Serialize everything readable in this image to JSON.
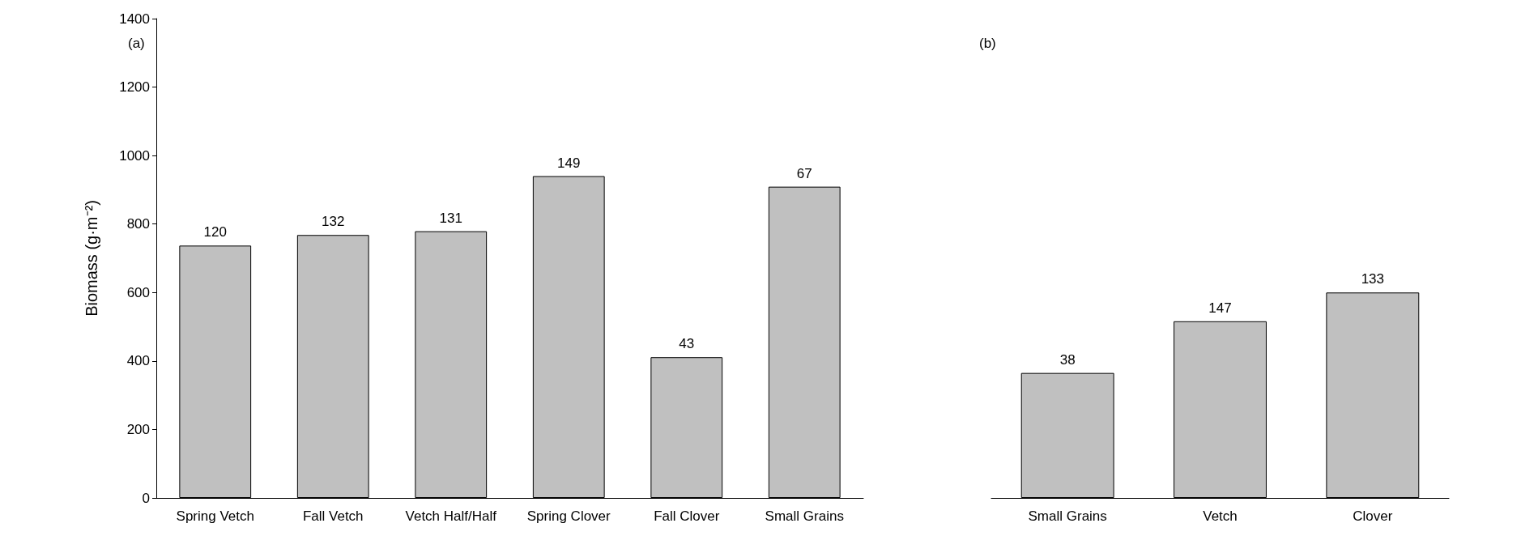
{
  "chart_data": [
    {
      "type": "bar",
      "title": "(a)",
      "ylabel": "Biomass (g·m⁻²)",
      "categories": [
        "Spring Vetch",
        "Fall Vetch",
        "Vetch Half/Half",
        "Spring Clover",
        "Fall Clover",
        "Small Grains"
      ],
      "values": [
        737,
        768,
        779,
        940,
        411,
        909
      ],
      "color": "#c0c0c0",
      "ylim": [
        0,
        1400
      ],
      "yticks": [
        0,
        200,
        400,
        600,
        800,
        1000,
        1200,
        1400
      ],
      "annotations": [
        {
          "text": "120",
          "x": "Spring Vetch",
          "y": 737
        },
        {
          "text": "132",
          "x": "Fall Vetch",
          "y": 768
        },
        {
          "text": "131",
          "x": "Vetch Half/Half",
          "y": 779
        },
        {
          "text": "149",
          "x": "Spring Clover",
          "y": 940
        },
        {
          "text": "43",
          "x": "Fall Clover",
          "y": 411
        },
        {
          "text": "67",
          "x": "Small Grains",
          "y": 909
        }
      ]
    },
    {
      "type": "bar",
      "title": "(b)",
      "categories": [
        "Small Grains",
        "Vetch",
        "Clover"
      ],
      "values": [
        365,
        516,
        600
      ],
      "color": "#c0c0c0",
      "ylim": [
        0,
        1400
      ],
      "yticks": [
        0,
        200,
        400,
        600,
        800,
        1000,
        1200,
        1400
      ],
      "tick_labels": "x",
      "annotations": [
        {
          "text": "38",
          "x": "Small Grains",
          "y": 365
        },
        {
          "text": "147",
          "x": "Vetch",
          "y": 516
        },
        {
          "text": "133",
          "x": "Clover",
          "y": 600
        }
      ]
    }
  ]
}
